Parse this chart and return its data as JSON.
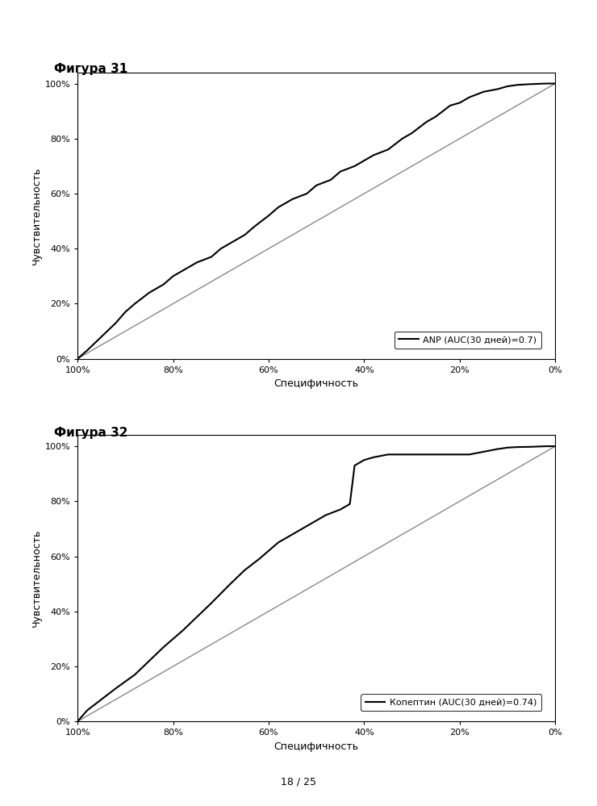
{
  "fig31_title": "Фигура 31",
  "fig32_title": "Фигура 32",
  "ylabel": "Чувствительность",
  "xlabel": "Специфичность",
  "legend1": "ANP (AUC(30 дней)=0.7)",
  "legend2": "Копептин (AUC(30 дней)=0.74)",
  "page_label": "18 / 25",
  "ytick_vals": [
    0,
    20,
    40,
    60,
    80,
    100
  ],
  "xtick_vals": [
    100,
    80,
    60,
    40,
    20,
    0
  ],
  "line_color": "#000000",
  "diag_color": "#888888",
  "background": "#ffffff",
  "roc1_spec": [
    100,
    98,
    95,
    92,
    90,
    88,
    85,
    82,
    80,
    78,
    75,
    72,
    70,
    68,
    65,
    63,
    60,
    58,
    55,
    52,
    50,
    47,
    45,
    42,
    40,
    38,
    35,
    32,
    30,
    27,
    25,
    22,
    20,
    18,
    15,
    12,
    10,
    8,
    5,
    2,
    0
  ],
  "roc1_sens": [
    0,
    3,
    8,
    13,
    17,
    20,
    24,
    27,
    30,
    32,
    35,
    37,
    40,
    42,
    45,
    48,
    52,
    55,
    58,
    60,
    63,
    65,
    68,
    70,
    72,
    74,
    76,
    80,
    82,
    86,
    88,
    92,
    93,
    95,
    97,
    98,
    99,
    99.5,
    99.8,
    100,
    100
  ],
  "roc2_spec": [
    100,
    98,
    95,
    92,
    88,
    85,
    82,
    78,
    75,
    72,
    68,
    65,
    62,
    60,
    58,
    55,
    52,
    50,
    48,
    45,
    43,
    42,
    40,
    38,
    35,
    32,
    30,
    27,
    25,
    22,
    20,
    18,
    15,
    12,
    10,
    8,
    5,
    2,
    0
  ],
  "roc2_sens": [
    0,
    4,
    8,
    12,
    17,
    22,
    27,
    33,
    38,
    43,
    50,
    55,
    59,
    62,
    65,
    68,
    71,
    73,
    75,
    77,
    79,
    93,
    95,
    96,
    97,
    97,
    97,
    97,
    97,
    97,
    97,
    97,
    98,
    99,
    99.5,
    99.7,
    99.8,
    100,
    100
  ]
}
